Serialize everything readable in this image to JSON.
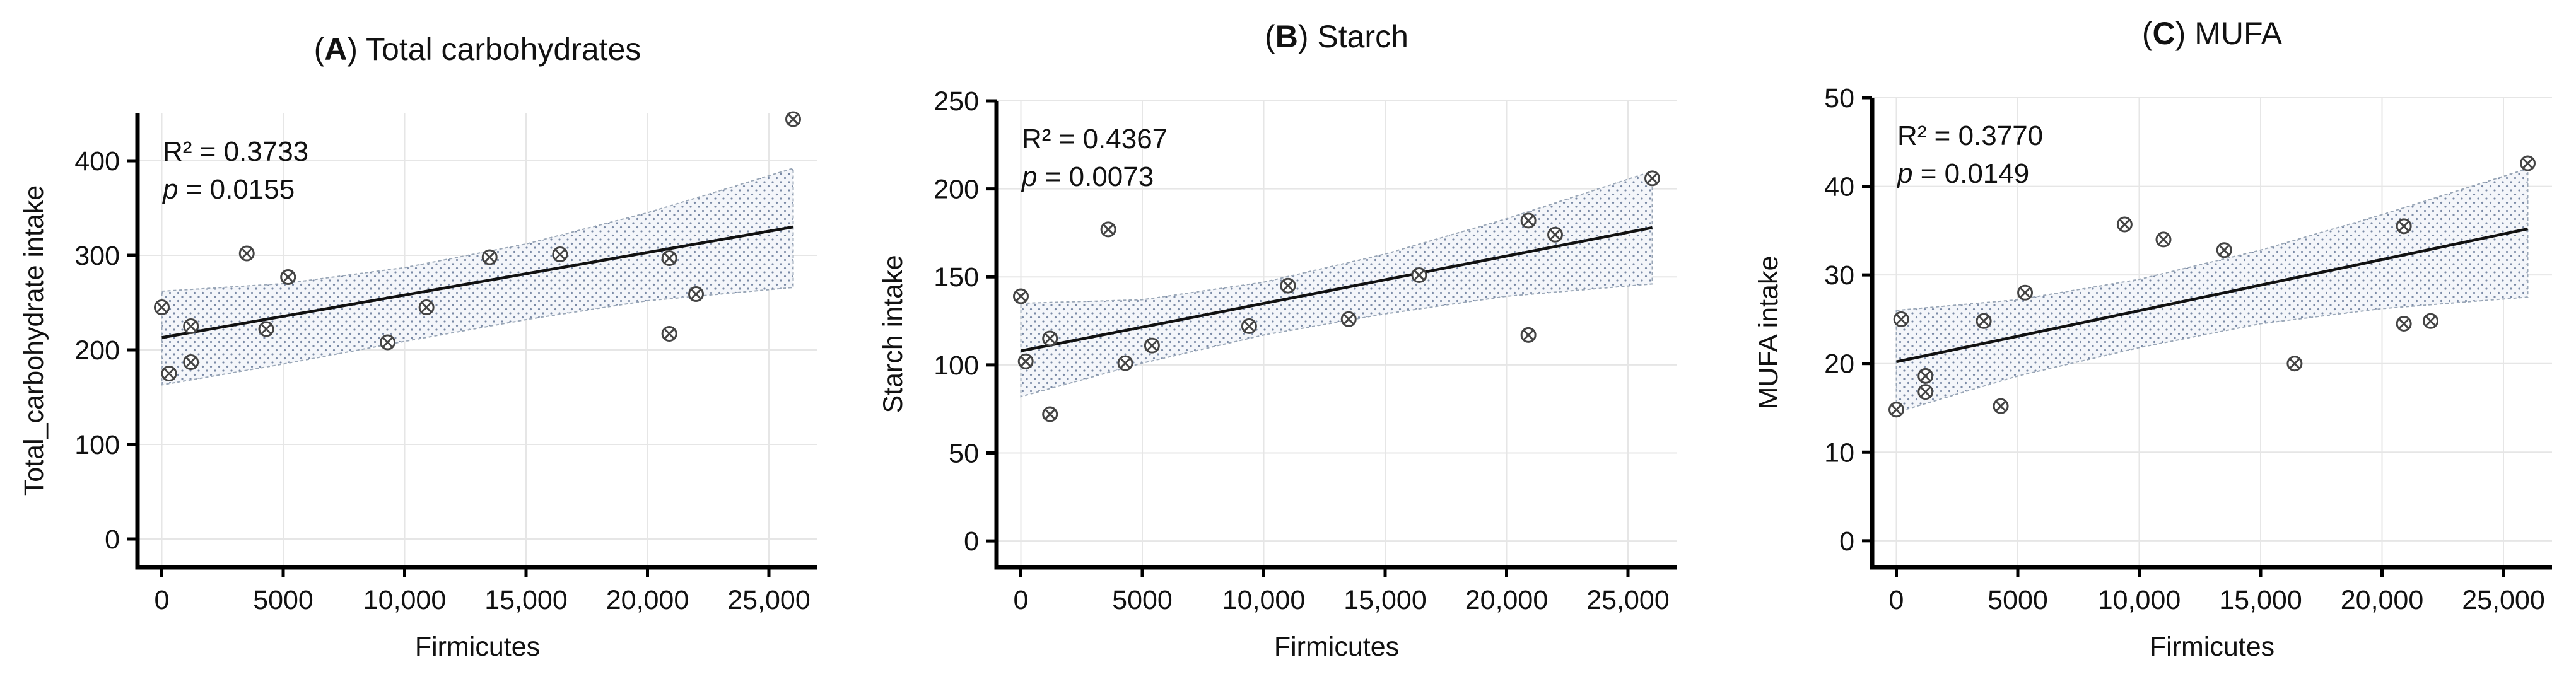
{
  "chart_data": [
    {
      "type": "scatter",
      "panel_letter": "A",
      "title": "Total carbohydrates",
      "xlabel": "Firmicutes",
      "ylabel": "Total_carbohydrate intake",
      "xlim": [
        -1000,
        27000
      ],
      "ylim": [
        -30,
        450
      ],
      "xticks": [
        0,
        5000,
        10000,
        15000,
        20000,
        25000
      ],
      "xtick_labels": [
        "0",
        "5000",
        "10,000",
        "15,000",
        "20,000",
        "25,000"
      ],
      "yticks": [
        0,
        100,
        200,
        300,
        400
      ],
      "ytick_labels": [
        "0",
        "100",
        "200",
        "300",
        "400"
      ],
      "grid": true,
      "stats": {
        "r2_label": "R² = 0.3733",
        "p_prefix": "p",
        "p_rest": " = 0.0155"
      },
      "fit": {
        "x": [
          0,
          26000
        ],
        "y": [
          213,
          330
        ]
      },
      "ci_band": {
        "upper": [
          [
            0,
            262
          ],
          [
            5000,
            270
          ],
          [
            10000,
            287
          ],
          [
            15000,
            312
          ],
          [
            20000,
            345
          ],
          [
            26000,
            392
          ]
        ],
        "lower": [
          [
            0,
            163
          ],
          [
            5000,
            185
          ],
          [
            10000,
            209
          ],
          [
            15000,
            232
          ],
          [
            20000,
            252
          ],
          [
            26000,
            266
          ]
        ]
      },
      "points": [
        {
          "x": 0,
          "y": 245
        },
        {
          "x": 300,
          "y": 175
        },
        {
          "x": 1200,
          "y": 225
        },
        {
          "x": 1200,
          "y": 187
        },
        {
          "x": 3500,
          "y": 302
        },
        {
          "x": 4300,
          "y": 222
        },
        {
          "x": 5200,
          "y": 277
        },
        {
          "x": 9300,
          "y": 208
        },
        {
          "x": 10900,
          "y": 245
        },
        {
          "x": 13500,
          "y": 298
        },
        {
          "x": 16400,
          "y": 301
        },
        {
          "x": 20900,
          "y": 297
        },
        {
          "x": 20900,
          "y": 217
        },
        {
          "x": 22000,
          "y": 259
        },
        {
          "x": 26000,
          "y": 444
        }
      ]
    },
    {
      "type": "scatter",
      "panel_letter": "B",
      "title": "Starch",
      "xlabel": "Firmicutes",
      "ylabel": "Starch intake",
      "xlim": [
        -1000,
        27000
      ],
      "ylim": [
        -15,
        250
      ],
      "xticks": [
        0,
        5000,
        10000,
        15000,
        20000,
        25000
      ],
      "xtick_labels": [
        "0",
        "5000",
        "10,000",
        "15,000",
        "20,000",
        "25,000"
      ],
      "yticks": [
        0,
        50,
        100,
        150,
        200,
        250
      ],
      "ytick_labels": [
        "0",
        "50",
        "100",
        "150",
        "200",
        "250"
      ],
      "grid": true,
      "stats": {
        "r2_label": "R² = 0.4367",
        "p_prefix": "p",
        "p_rest": " = 0.0073"
      },
      "fit": {
        "x": [
          0,
          26000
        ],
        "y": [
          108,
          178
        ]
      },
      "ci_band": {
        "upper": [
          [
            0,
            135
          ],
          [
            5000,
            137
          ],
          [
            10000,
            147
          ],
          [
            15000,
            163
          ],
          [
            20000,
            183
          ],
          [
            26000,
            210
          ]
        ],
        "lower": [
          [
            0,
            82
          ],
          [
            5000,
            101
          ],
          [
            10000,
            117
          ],
          [
            15000,
            129
          ],
          [
            20000,
            139
          ],
          [
            26000,
            146
          ]
        ]
      },
      "points": [
        {
          "x": 0,
          "y": 139
        },
        {
          "x": 200,
          "y": 102
        },
        {
          "x": 1200,
          "y": 115
        },
        {
          "x": 1200,
          "y": 72
        },
        {
          "x": 3600,
          "y": 177
        },
        {
          "x": 4300,
          "y": 101
        },
        {
          "x": 5400,
          "y": 111
        },
        {
          "x": 9400,
          "y": 122
        },
        {
          "x": 11000,
          "y": 145
        },
        {
          "x": 13500,
          "y": 126
        },
        {
          "x": 16400,
          "y": 151
        },
        {
          "x": 20900,
          "y": 182
        },
        {
          "x": 20900,
          "y": 117
        },
        {
          "x": 22000,
          "y": 174
        },
        {
          "x": 26000,
          "y": 206
        }
      ]
    },
    {
      "type": "scatter",
      "panel_letter": "C",
      "title": "MUFA",
      "xlabel": "Firmicutes",
      "ylabel": "MUFA intake",
      "xlim": [
        -1000,
        27000
      ],
      "ylim": [
        -3,
        50
      ],
      "xticks": [
        0,
        5000,
        10000,
        15000,
        20000,
        25000
      ],
      "xtick_labels": [
        "0",
        "5000",
        "10,000",
        "15,000",
        "20,000",
        "25,000"
      ],
      "yticks": [
        0,
        10,
        20,
        30,
        40,
        50
      ],
      "ytick_labels": [
        "0",
        "10",
        "20",
        "30",
        "40",
        "50"
      ],
      "grid": true,
      "stats": {
        "r2_label": "R² = 0.3770",
        "p_prefix": "p",
        "p_rest": " = 0.0149"
      },
      "fit": {
        "x": [
          0,
          26000
        ],
        "y": [
          20.2,
          35.2
        ]
      },
      "ci_band": {
        "upper": [
          [
            0,
            26
          ],
          [
            5000,
            27.2
          ],
          [
            10000,
            29.5
          ],
          [
            15000,
            32.8
          ],
          [
            20000,
            36.8
          ],
          [
            26000,
            42
          ]
        ],
        "lower": [
          [
            0,
            14.5
          ],
          [
            5000,
            18.6
          ],
          [
            10000,
            21.8
          ],
          [
            15000,
            24.5
          ],
          [
            20000,
            26.2
          ],
          [
            26000,
            27.5
          ]
        ]
      },
      "points": [
        {
          "x": 0,
          "y": 14.8
        },
        {
          "x": 200,
          "y": 25
        },
        {
          "x": 1200,
          "y": 18.6
        },
        {
          "x": 1200,
          "y": 16.8
        },
        {
          "x": 3600,
          "y": 24.8
        },
        {
          "x": 4300,
          "y": 15.2
        },
        {
          "x": 5300,
          "y": 28
        },
        {
          "x": 9400,
          "y": 35.7
        },
        {
          "x": 11000,
          "y": 34
        },
        {
          "x": 13500,
          "y": 32.8
        },
        {
          "x": 16400,
          "y": 20
        },
        {
          "x": 20900,
          "y": 35.5
        },
        {
          "x": 20900,
          "y": 24.5
        },
        {
          "x": 22000,
          "y": 24.8
        },
        {
          "x": 26000,
          "y": 42.6
        }
      ]
    }
  ]
}
